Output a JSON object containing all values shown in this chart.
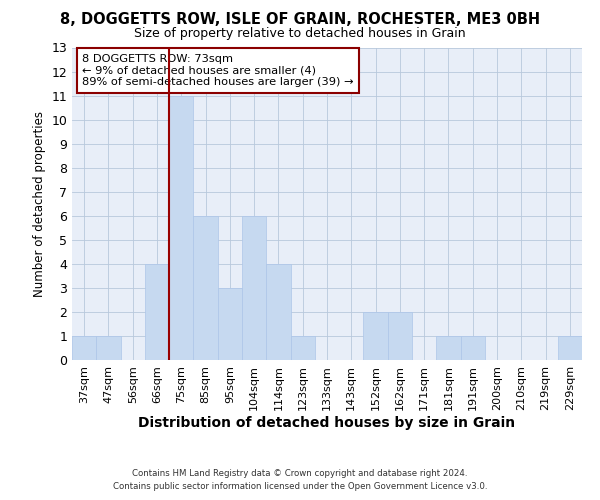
{
  "title": "8, DOGGETTS ROW, ISLE OF GRAIN, ROCHESTER, ME3 0BH",
  "subtitle": "Size of property relative to detached houses in Grain",
  "xlabel": "Distribution of detached houses by size in Grain",
  "ylabel": "Number of detached properties",
  "categories": [
    "37sqm",
    "47sqm",
    "56sqm",
    "66sqm",
    "75sqm",
    "85sqm",
    "95sqm",
    "104sqm",
    "114sqm",
    "123sqm",
    "133sqm",
    "143sqm",
    "152sqm",
    "162sqm",
    "171sqm",
    "181sqm",
    "191sqm",
    "200sqm",
    "210sqm",
    "219sqm",
    "229sqm"
  ],
  "values": [
    1,
    1,
    0,
    4,
    11,
    6,
    3,
    6,
    4,
    1,
    0,
    0,
    2,
    2,
    0,
    1,
    1,
    0,
    0,
    0,
    1
  ],
  "bar_color": "#c6d9f0",
  "bar_edge_color": "#adc6e8",
  "grid_color": "#b8c8dc",
  "property_line_index": 4,
  "annotation_line1": "8 DOGGETTS ROW: 73sqm",
  "annotation_line2": "← 9% of detached houses are smaller (4)",
  "annotation_line3": "89% of semi-detached houses are larger (39) →",
  "annotation_box_color": "#ffffff",
  "annotation_box_edge_color": "#8b0000",
  "ylim": [
    0,
    13
  ],
  "yticks": [
    0,
    1,
    2,
    3,
    4,
    5,
    6,
    7,
    8,
    9,
    10,
    11,
    12,
    13
  ],
  "footer_line1": "Contains HM Land Registry data © Crown copyright and database right 2024.",
  "footer_line2": "Contains public sector information licensed under the Open Government Licence v3.0.",
  "bg_color": "#e8eef8"
}
